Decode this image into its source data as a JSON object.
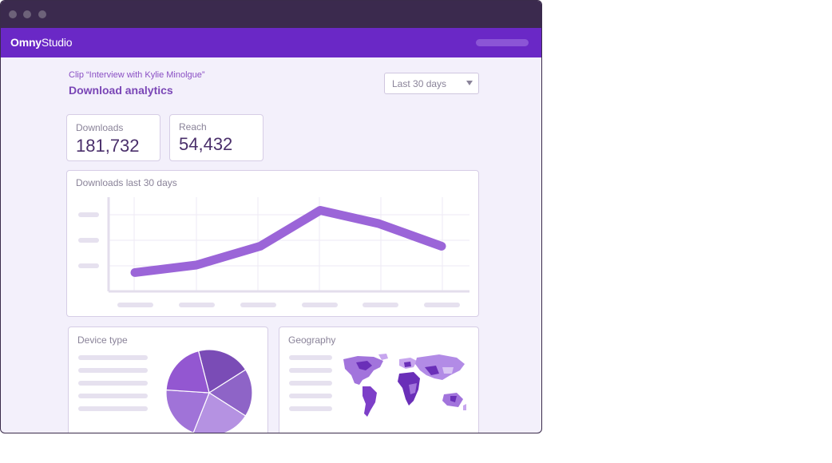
{
  "app": {
    "logo_prefix": "Omny",
    "logo_suffix": "Studio"
  },
  "header": {
    "clip_label": "Clip “Interview with Kylie Minolgue”",
    "page_title": "Download analytics",
    "range_select": {
      "value": "Last 30 days"
    }
  },
  "stats": [
    {
      "label": "Downloads",
      "value": "181,732"
    },
    {
      "label": "Reach",
      "value": "54,432"
    }
  ],
  "downloads_card": {
    "title": "Downloads last 30 days"
  },
  "device_card": {
    "title": "Device type"
  },
  "geography_card": {
    "title": "Geography"
  },
  "colors": {
    "accent": "#6a28c6",
    "line": "#9b65d8",
    "pie": [
      "#7a4cb6",
      "#8e64c7",
      "#b592e2",
      "#a073d8",
      "#9357d1"
    ]
  },
  "chart_data": {
    "type": "line",
    "title": "Downloads last 30 days",
    "x": [
      1,
      2,
      3,
      4,
      5,
      6
    ],
    "series": [
      {
        "values": [
          20,
          28,
          48,
          86,
          72,
          48
        ]
      }
    ],
    "ylim": [
      0,
      100
    ],
    "grid": true,
    "tick_labels_shown": false
  },
  "device_chart": {
    "type": "pie",
    "values": [
      20,
      18,
      22,
      20,
      20
    ]
  }
}
